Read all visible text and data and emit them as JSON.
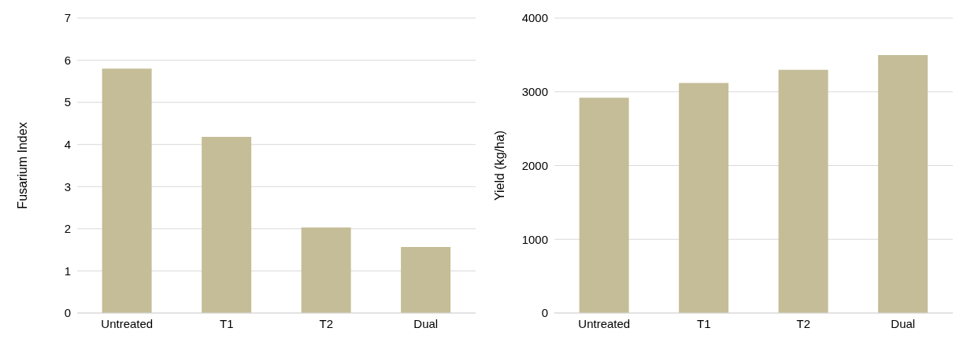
{
  "chart_data": [
    {
      "type": "bar",
      "ylabel": "Fusarium Index",
      "categories": [
        "Untreated",
        "T1",
        "T2",
        "Dual"
      ],
      "values": [
        5.8,
        4.18,
        2.03,
        1.57
      ],
      "color": "#c4bd97",
      "ylim": [
        0,
        7
      ],
      "yticks": [
        0,
        1,
        2,
        3,
        4,
        5,
        6,
        7
      ],
      "grid": "y"
    },
    {
      "type": "bar",
      "ylabel": "Yield (kg/ha)",
      "categories": [
        "Untreated",
        "T1",
        "T2",
        "Dual"
      ],
      "values": [
        2920,
        3120,
        3300,
        3500
      ],
      "color": "#c4bd97",
      "ylim": [
        0,
        4000
      ],
      "yticks": [
        0,
        1000,
        2000,
        3000,
        4000
      ],
      "grid": "y"
    }
  ]
}
